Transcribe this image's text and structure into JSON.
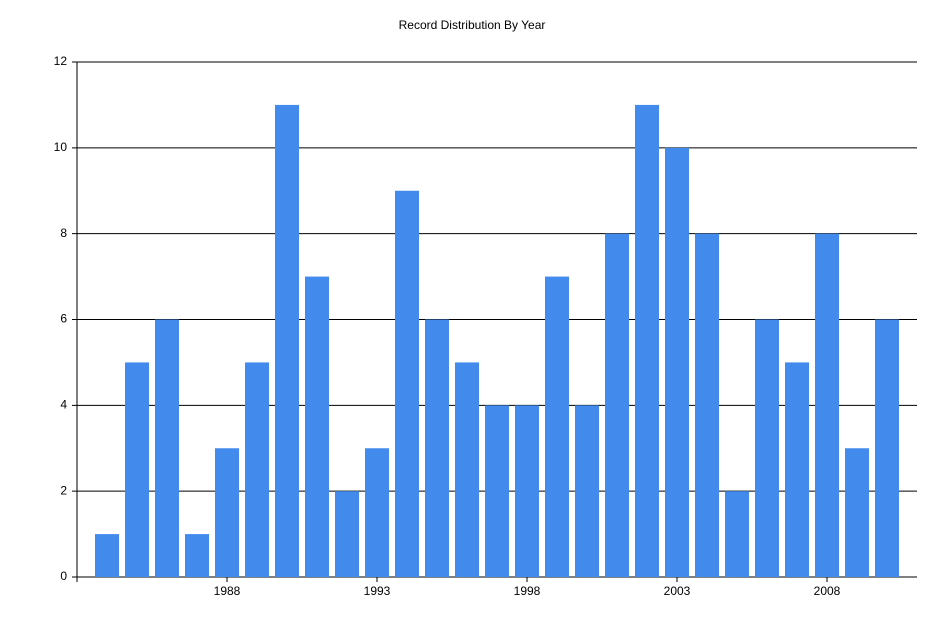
{
  "chart_data": {
    "type": "bar",
    "title": "Record Distribution By Year",
    "x": [
      1984,
      1985,
      1986,
      1987,
      1988,
      1989,
      1990,
      1991,
      1992,
      1993,
      1994,
      1995,
      1996,
      1997,
      1998,
      1999,
      2000,
      2001,
      2002,
      2003,
      2004,
      2005,
      2006,
      2007,
      2008,
      2009,
      2010
    ],
    "values": [
      1,
      5,
      6,
      1,
      3,
      5,
      11,
      7,
      2,
      3,
      9,
      6,
      5,
      4,
      4,
      7,
      4,
      8,
      11,
      10,
      8,
      2,
      6,
      5,
      8,
      3,
      6
    ],
    "color": "#428bec",
    "xlim": [
      1983,
      2011
    ],
    "xticks": [
      1988,
      1993,
      1998,
      2003,
      2008
    ],
    "ylim": [
      0,
      12
    ],
    "yticks": [
      0,
      2,
      4,
      6,
      8,
      10,
      12
    ],
    "grid": true
  }
}
